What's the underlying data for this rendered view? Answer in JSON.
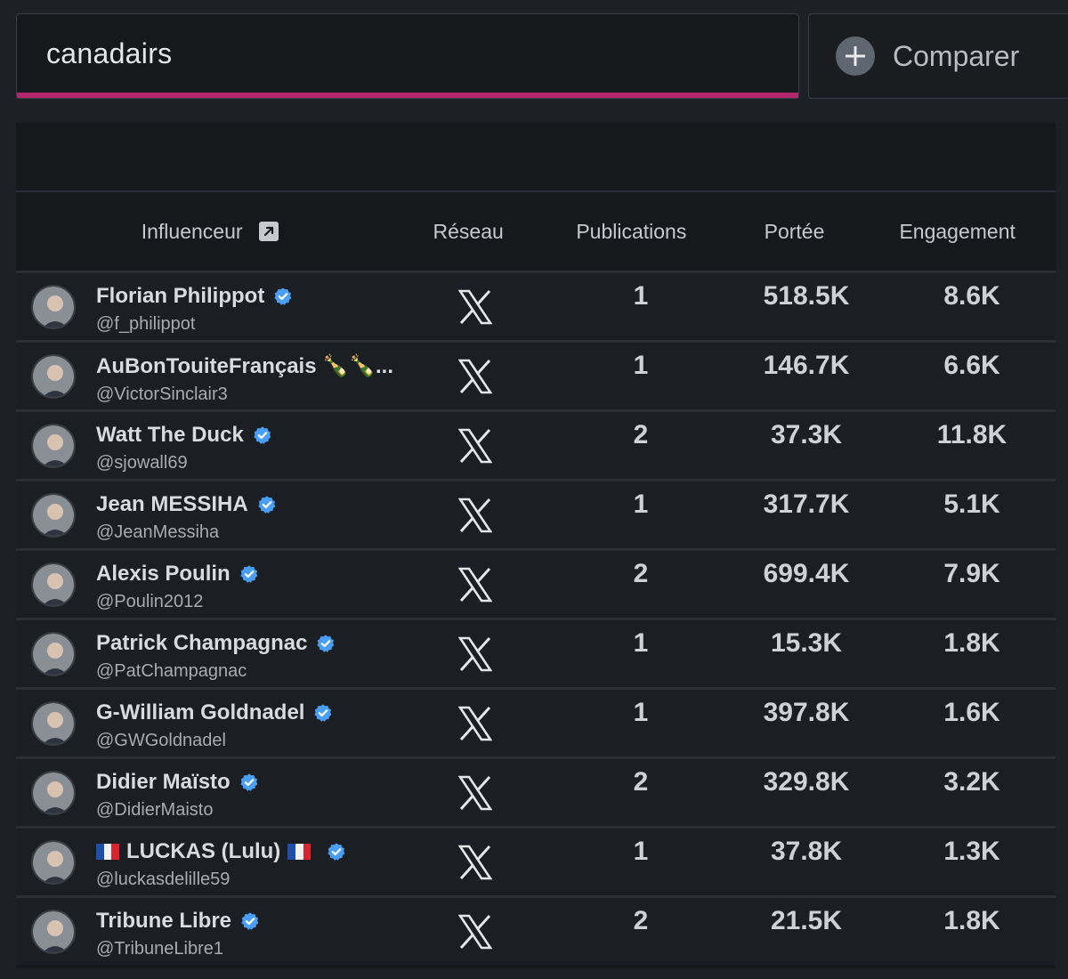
{
  "search": {
    "value": "canadairs"
  },
  "compare": {
    "label": "Comparer"
  },
  "table": {
    "headers": {
      "influencer": "Influenceur",
      "network": "Réseau",
      "publications": "Publications",
      "reach": "Portée",
      "engagement": "Engagement"
    },
    "rows": [
      {
        "name": "Florian Philippot",
        "handle": "@f_philippot",
        "verified": true,
        "publications": "1",
        "reach": "518.5K",
        "engagement": "8.6K"
      },
      {
        "name": "AuBonTouiteFrançais 🍾🍾...",
        "handle": "@VictorSinclair3",
        "verified": false,
        "publications": "1",
        "reach": "146.7K",
        "engagement": "6.6K"
      },
      {
        "name": "Watt The Duck",
        "handle": "@sjowall69",
        "verified": true,
        "publications": "2",
        "reach": "37.3K",
        "engagement": "11.8K"
      },
      {
        "name": "Jean MESSIHA",
        "handle": "@JeanMessiha",
        "verified": true,
        "publications": "1",
        "reach": "317.7K",
        "engagement": "5.1K"
      },
      {
        "name": "Alexis Poulin",
        "handle": "@Poulin2012",
        "verified": true,
        "publications": "2",
        "reach": "699.4K",
        "engagement": "7.9K"
      },
      {
        "name": "Patrick Champagnac",
        "handle": "@PatChampagnac",
        "verified": true,
        "publications": "1",
        "reach": "15.3K",
        "engagement": "1.8K"
      },
      {
        "name": "G-William Goldnadel",
        "handle": "@GWGoldnadel",
        "verified": true,
        "publications": "1",
        "reach": "397.8K",
        "engagement": "1.6K"
      },
      {
        "name": "Didier Maïsto",
        "handle": "@DidierMaisto",
        "verified": true,
        "publications": "2",
        "reach": "329.8K",
        "engagement": "3.2K"
      },
      {
        "name": "LUCKAS (Lulu)",
        "handle": "@luckasdelille59",
        "verified": true,
        "publications": "1",
        "reach": "37.8K",
        "engagement": "1.3K"
      },
      {
        "name": "Tribune Libre",
        "handle": "@TribuneLibre1",
        "verified": true,
        "publications": "2",
        "reach": "21.5K",
        "engagement": "1.8K"
      }
    ]
  },
  "icons": {
    "network": "x-logo-icon",
    "verified": "verified-badge-icon",
    "external": "external-link-icon",
    "add": "plus-circle-icon"
  },
  "colors": {
    "accent": "#b3266d",
    "verified": "#4a9ff5",
    "background": "#1d2025",
    "panel": "#16181c"
  }
}
